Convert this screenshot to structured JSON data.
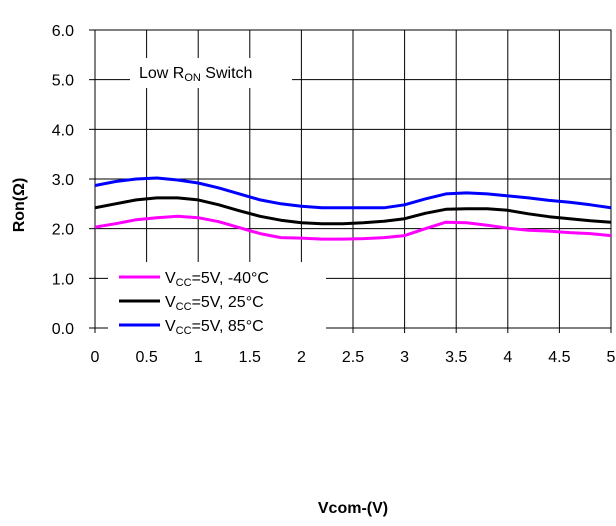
{
  "chart_data": {
    "type": "line",
    "title": "",
    "annotation": {
      "main": "Low R",
      "sub": "ON",
      "suffix": " Switch"
    },
    "xlabel": "Vcom-(V)",
    "ylabel": "Ron(Ω)",
    "xlim": [
      0,
      5
    ],
    "ylim": [
      0,
      6
    ],
    "x_ticks": [
      "0",
      "0.5",
      "1",
      "1.5",
      "2",
      "2.5",
      "3",
      "3.5",
      "4",
      "4.5",
      "5"
    ],
    "y_ticks": [
      "0.0",
      "1.0",
      "2.0",
      "3.0",
      "4.0",
      "5.0",
      "6.0"
    ],
    "grid": true,
    "legend_position": "bottom-left",
    "series": [
      {
        "name": "VCC=5V, -40°C",
        "label_parts": [
          "V",
          "CC",
          "=5V, -40°C"
        ],
        "color": "#ff00ff",
        "x": [
          0.0,
          0.2,
          0.4,
          0.6,
          0.8,
          1.0,
          1.2,
          1.4,
          1.6,
          1.8,
          2.0,
          2.2,
          2.4,
          2.6,
          2.8,
          3.0,
          3.2,
          3.4,
          3.6,
          3.8,
          4.0,
          4.2,
          4.4,
          4.6,
          4.8,
          5.0
        ],
        "values": [
          2.03,
          2.1,
          2.18,
          2.22,
          2.25,
          2.22,
          2.14,
          2.02,
          1.9,
          1.82,
          1.81,
          1.79,
          1.79,
          1.8,
          1.82,
          1.86,
          2.0,
          2.13,
          2.12,
          2.07,
          2.01,
          1.97,
          1.95,
          1.92,
          1.9,
          1.86
        ]
      },
      {
        "name": "VCC=5V, 25°C",
        "label_parts": [
          "V",
          "CC",
          "=5V,  25°C"
        ],
        "color": "#000000",
        "x": [
          0.0,
          0.2,
          0.4,
          0.6,
          0.8,
          1.0,
          1.2,
          1.4,
          1.6,
          1.8,
          2.0,
          2.2,
          2.4,
          2.6,
          2.8,
          3.0,
          3.2,
          3.4,
          3.6,
          3.8,
          4.0,
          4.2,
          4.4,
          4.6,
          4.8,
          5.0
        ],
        "values": [
          2.42,
          2.5,
          2.58,
          2.62,
          2.62,
          2.58,
          2.48,
          2.36,
          2.25,
          2.17,
          2.12,
          2.1,
          2.1,
          2.12,
          2.15,
          2.2,
          2.31,
          2.39,
          2.4,
          2.4,
          2.37,
          2.3,
          2.24,
          2.2,
          2.16,
          2.13
        ]
      },
      {
        "name": "VCC=5V, 85°C",
        "label_parts": [
          "V",
          "CC",
          "=5V,  85°C"
        ],
        "color": "#0000ff",
        "x": [
          0.0,
          0.2,
          0.4,
          0.6,
          0.8,
          1.0,
          1.2,
          1.4,
          1.6,
          1.8,
          2.0,
          2.2,
          2.4,
          2.6,
          2.8,
          3.0,
          3.2,
          3.4,
          3.6,
          3.8,
          4.0,
          4.2,
          4.4,
          4.6,
          4.8,
          5.0
        ],
        "values": [
          2.87,
          2.95,
          3.0,
          3.02,
          2.98,
          2.92,
          2.82,
          2.7,
          2.58,
          2.5,
          2.45,
          2.42,
          2.42,
          2.42,
          2.42,
          2.48,
          2.6,
          2.7,
          2.72,
          2.7,
          2.66,
          2.62,
          2.57,
          2.53,
          2.48,
          2.42
        ]
      }
    ]
  }
}
